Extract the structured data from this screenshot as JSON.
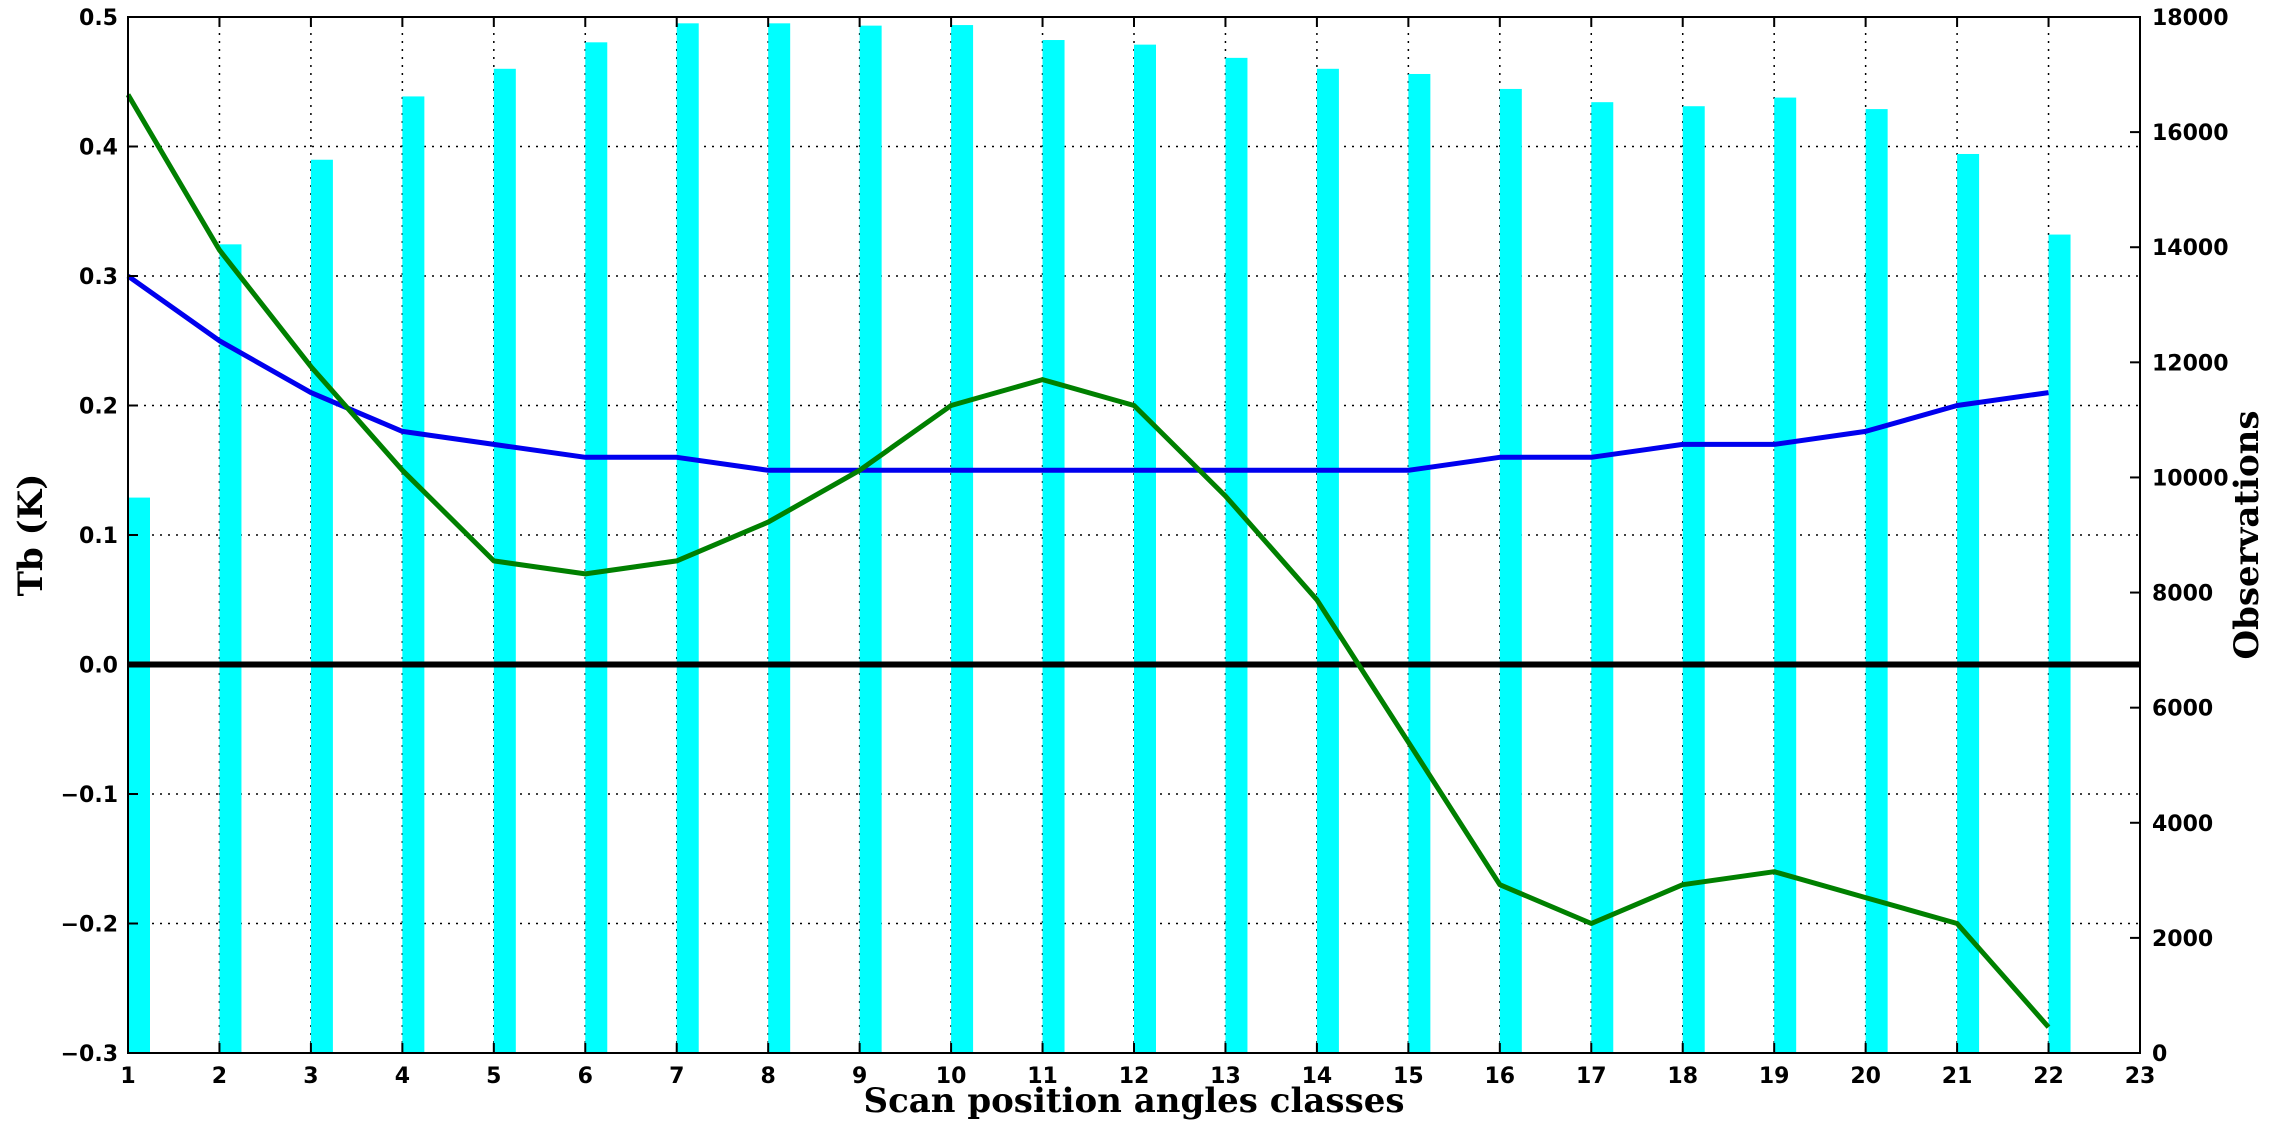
{
  "chart_data": {
    "type": "bar",
    "xlabel": "Scan position angles classes",
    "ylabel_left": "Tb (K)",
    "ylabel_right": "Observations",
    "xlim": [
      1,
      23
    ],
    "ylim_left": [
      -0.3,
      0.5
    ],
    "ylim_right": [
      0,
      18000
    ],
    "x_ticks": [
      "1",
      "2",
      "3",
      "4",
      "5",
      "6",
      "7",
      "8",
      "9",
      "10",
      "11",
      "12",
      "13",
      "14",
      "15",
      "16",
      "17",
      "18",
      "19",
      "20",
      "21",
      "22",
      "23"
    ],
    "y_left_ticks": [
      {
        "value": 0.5,
        "label": "0.5"
      },
      {
        "value": 0.4,
        "label": "0.4"
      },
      {
        "value": 0.3,
        "label": "0.3"
      },
      {
        "value": 0.2,
        "label": "0.2"
      },
      {
        "value": 0.1,
        "label": "0.1"
      },
      {
        "value": 0.0,
        "label": "0.0"
      },
      {
        "value": -0.1,
        "label": "−0.1"
      },
      {
        "value": -0.2,
        "label": "−0.2"
      },
      {
        "value": -0.3,
        "label": "−0.3"
      }
    ],
    "y_right_ticks": [
      {
        "value": 18000,
        "label": "18000"
      },
      {
        "value": 16000,
        "label": "16000"
      },
      {
        "value": 14000,
        "label": "14000"
      },
      {
        "value": 12000,
        "label": "12000"
      },
      {
        "value": 10000,
        "label": "10000"
      },
      {
        "value": 8000,
        "label": "8000"
      },
      {
        "value": 6000,
        "label": "6000"
      },
      {
        "value": 4000,
        "label": "4000"
      },
      {
        "value": 2000,
        "label": "2000"
      },
      {
        "value": 0,
        "label": "0"
      }
    ],
    "grid": true,
    "zero_line": 0.0,
    "bars": {
      "axis": "right",
      "color": "#00ffff",
      "x": [
        1,
        2,
        3,
        4,
        5,
        6,
        7,
        8,
        9,
        10,
        11,
        12,
        13,
        14,
        15,
        16,
        17,
        18,
        19,
        20,
        21,
        22
      ],
      "values": [
        9650,
        14050,
        15520,
        16620,
        17100,
        17560,
        17890,
        17890,
        17850,
        17860,
        17600,
        17520,
        17290,
        17100,
        17010,
        16750,
        16520,
        16450,
        16600,
        16400,
        15620,
        14220
      ]
    },
    "series": [
      {
        "axis": "left",
        "color": "#0000ee",
        "x": [
          1,
          2,
          3,
          4,
          5,
          6,
          7,
          8,
          9,
          10,
          11,
          12,
          13,
          14,
          15,
          16,
          17,
          18,
          19,
          20,
          21,
          22
        ],
        "values": [
          0.3,
          0.25,
          0.21,
          0.18,
          0.17,
          0.16,
          0.16,
          0.15,
          0.15,
          0.15,
          0.15,
          0.15,
          0.15,
          0.15,
          0.15,
          0.16,
          0.16,
          0.17,
          0.17,
          0.18,
          0.2,
          0.21
        ]
      },
      {
        "axis": "left",
        "color": "#008000",
        "x": [
          1,
          2,
          3,
          4,
          5,
          6,
          7,
          8,
          9,
          10,
          11,
          12,
          13,
          14,
          15,
          16,
          17,
          18,
          19,
          20,
          21,
          22
        ],
        "values": [
          0.44,
          0.32,
          0.23,
          0.15,
          0.08,
          0.07,
          0.08,
          0.11,
          0.15,
          0.2,
          0.22,
          0.2,
          0.13,
          0.05,
          -0.06,
          -0.17,
          -0.2,
          -0.17,
          -0.16,
          -0.18,
          -0.2,
          -0.28
        ]
      }
    ]
  }
}
